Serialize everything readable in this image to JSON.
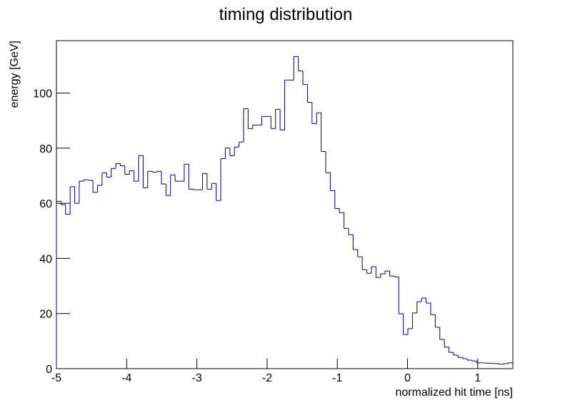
{
  "chart_data": {
    "type": "histogram",
    "title": "timing distribution",
    "x_label": "normalized hit time [ns]",
    "y_label": "energy [GeV]",
    "color": "#000080",
    "bins": [
      -5,
      -4.935,
      -4.87,
      -4.805,
      -4.74,
      -4.675,
      -4.61,
      -4.545,
      -4.48,
      -4.415,
      -4.35,
      -4.285,
      -4.22,
      -4.155,
      -4.09,
      -4.025,
      -3.96,
      -3.895,
      -3.83,
      -3.765,
      -3.7,
      -3.635,
      -3.57,
      -3.505,
      -3.44,
      -3.375,
      -3.31,
      -3.245,
      -3.18,
      -3.115,
      -3.05,
      -2.985,
      -2.92,
      -2.855,
      -2.79,
      -2.725,
      -2.66,
      -2.595,
      -2.53,
      -2.465,
      -2.4,
      -2.335,
      -2.27,
      -2.205,
      -2.14,
      -2.075,
      -2.01,
      -1.945,
      -1.88,
      -1.815,
      -1.75,
      -1.685,
      -1.62,
      -1.555,
      -1.49,
      -1.425,
      -1.36,
      -1.295,
      -1.23,
      -1.165,
      -1.1,
      -1.035,
      -0.97,
      -0.905,
      -0.84,
      -0.775,
      -0.71,
      -0.645,
      -0.58,
      -0.515,
      -0.45,
      -0.385,
      -0.32,
      -0.255,
      -0.19,
      -0.125,
      -0.06,
      0.005,
      0.07,
      0.135,
      0.2,
      0.265,
      0.33,
      0.395,
      0.46,
      0.525,
      0.59,
      0.655,
      0.72,
      0.785,
      0.85,
      0.915,
      0.98,
      1.045,
      1.11,
      1.175,
      1.24,
      1.305,
      1.37,
      1.435,
      1.5
    ],
    "values": [
      60.7,
      59.5,
      56,
      66,
      60,
      68,
      68.5,
      68.3,
      64,
      66.5,
      71,
      69.5,
      72.6,
      74.4,
      73.6,
      70.5,
      71.8,
      68,
      77.3,
      65.6,
      71.6,
      71.3,
      71.6,
      67,
      62.8,
      70.3,
      68,
      68,
      74.2,
      65.1,
      64.9,
      64.9,
      70.8,
      65.1,
      67.2,
      61,
      76.2,
      80.1,
      77.3,
      80.4,
      82.2,
      94.3,
      87.1,
      88.4,
      88.4,
      91.5,
      91.5,
      87.1,
      94.1,
      86.6,
      104.7,
      104.7,
      113.2,
      108,
      103.1,
      96.6,
      88.9,
      92.8,
      78.8,
      71.1,
      64.6,
      58.1,
      56.6,
      50.9,
      48.6,
      43.2,
      40.6,
      35.9,
      34.6,
      37,
      33.1,
      34.4,
      35.4,
      33.6,
      33.3,
      19.9,
      12.4,
      14.5,
      20.2,
      24.3,
      25.6,
      23.8,
      19.6,
      15,
      10.6,
      7.8,
      5.9,
      4.9,
      4.1,
      3.6,
      3.1,
      2.8,
      2.1,
      2.1,
      2,
      1.9,
      1.8,
      1.6,
      1.8,
      2.1
    ],
    "xlim": [
      -5,
      1.5
    ],
    "xticks": [
      -5,
      -4,
      -3,
      -2,
      -1,
      0,
      1
    ],
    "ylim": [
      0,
      119
    ],
    "yticks": [
      0,
      20,
      40,
      60,
      80,
      100
    ]
  }
}
